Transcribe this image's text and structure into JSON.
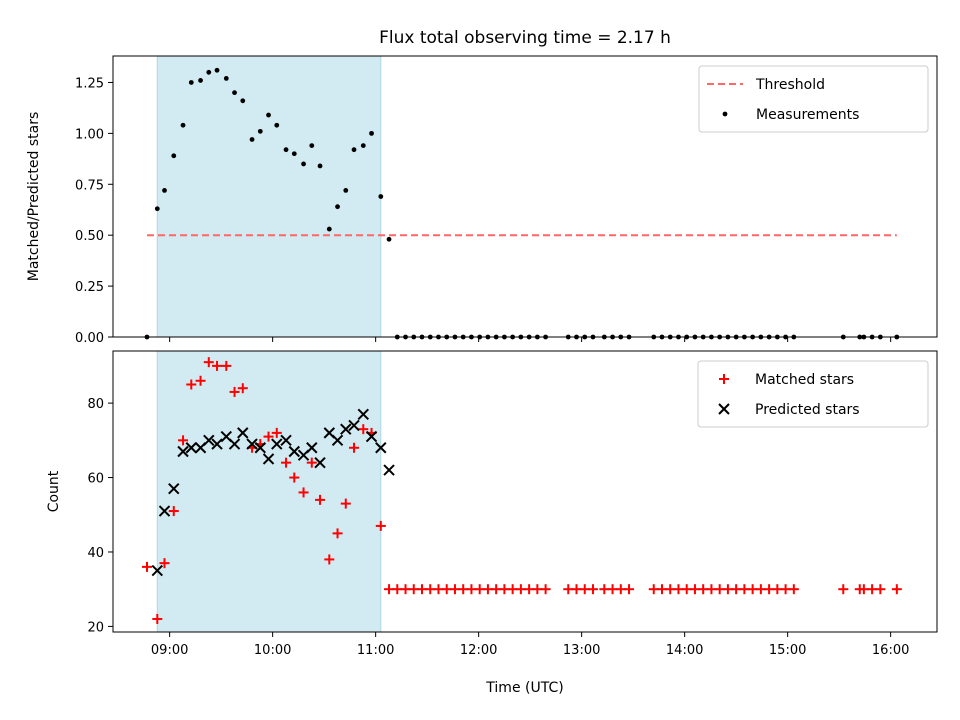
{
  "chart_data": {
    "type": "scatter",
    "title": "Flux total observing time = 2.17 h",
    "xlabel": "Time (UTC)",
    "x_unit": "hours UTC",
    "xlim": [
      8.45,
      16.45
    ],
    "xticks": [
      {
        "value": 9,
        "label": "09:00"
      },
      {
        "value": 10,
        "label": "10:00"
      },
      {
        "value": 11,
        "label": "11:00"
      },
      {
        "value": 12,
        "label": "12:00"
      },
      {
        "value": 13,
        "label": "13:00"
      },
      {
        "value": 14,
        "label": "14:00"
      },
      {
        "value": 15,
        "label": "15:00"
      },
      {
        "value": 16,
        "label": "16:00"
      }
    ],
    "shaded_interval": [
      8.88,
      11.05
    ],
    "shade_color": "#add8e6",
    "panels": [
      {
        "id": "ratio",
        "ylabel": "Matched/Predicted stars",
        "ylim": [
          0,
          1.38
        ],
        "yticks": [
          {
            "value": 0,
            "label": "0.00"
          },
          {
            "value": 0.25,
            "label": "0.25"
          },
          {
            "value": 0.5,
            "label": "0.50"
          },
          {
            "value": 0.75,
            "label": "0.75"
          },
          {
            "value": 1.0,
            "label": "1.00"
          },
          {
            "value": 1.25,
            "label": "1.25"
          }
        ],
        "legend": {
          "position": "upper right",
          "entries": [
            "Threshold",
            "Measurements"
          ]
        },
        "threshold": {
          "name": "Threshold",
          "value": 0.5,
          "x": [
            8.78,
            16.06
          ],
          "color": "#ff6666",
          "style": "dashed"
        },
        "series": [
          {
            "name": "Measurements",
            "marker": "dot",
            "color": "#000000",
            "points": [
              [
                8.78,
                0.0
              ],
              [
                8.88,
                0.63
              ],
              [
                8.95,
                0.72
              ],
              [
                9.04,
                0.89
              ],
              [
                9.13,
                1.04
              ],
              [
                9.21,
                1.25
              ],
              [
                9.3,
                1.26
              ],
              [
                9.38,
                1.3
              ],
              [
                9.46,
                1.31
              ],
              [
                9.55,
                1.27
              ],
              [
                9.63,
                1.2
              ],
              [
                9.71,
                1.16
              ],
              [
                9.8,
                0.97
              ],
              [
                9.88,
                1.01
              ],
              [
                9.96,
                1.09
              ],
              [
                10.04,
                1.04
              ],
              [
                10.13,
                0.92
              ],
              [
                10.21,
                0.9
              ],
              [
                10.3,
                0.85
              ],
              [
                10.38,
                0.94
              ],
              [
                10.46,
                0.84
              ],
              [
                10.55,
                0.53
              ],
              [
                10.63,
                0.64
              ],
              [
                10.71,
                0.72
              ],
              [
                10.79,
                0.92
              ],
              [
                10.88,
                0.94
              ],
              [
                10.96,
                1.0
              ],
              [
                11.05,
                0.69
              ],
              [
                11.13,
                0.48
              ],
              [
                11.21,
                0
              ],
              [
                11.29,
                0
              ],
              [
                11.37,
                0
              ],
              [
                11.45,
                0
              ],
              [
                11.53,
                0
              ],
              [
                11.61,
                0
              ],
              [
                11.69,
                0
              ],
              [
                11.77,
                0
              ],
              [
                11.85,
                0
              ],
              [
                11.93,
                0
              ],
              [
                12.01,
                0
              ],
              [
                12.09,
                0
              ],
              [
                12.17,
                0
              ],
              [
                12.25,
                0
              ],
              [
                12.33,
                0
              ],
              [
                12.41,
                0
              ],
              [
                12.49,
                0
              ],
              [
                12.57,
                0
              ],
              [
                12.65,
                0
              ],
              [
                12.87,
                0
              ],
              [
                12.95,
                0
              ],
              [
                13.03,
                0
              ],
              [
                13.11,
                0
              ],
              [
                13.22,
                0
              ],
              [
                13.3,
                0
              ],
              [
                13.38,
                0
              ],
              [
                13.46,
                0
              ],
              [
                13.7,
                0
              ],
              [
                13.78,
                0
              ],
              [
                13.86,
                0
              ],
              [
                13.94,
                0
              ],
              [
                14.02,
                0
              ],
              [
                14.1,
                0
              ],
              [
                14.18,
                0
              ],
              [
                14.26,
                0
              ],
              [
                14.34,
                0
              ],
              [
                14.42,
                0
              ],
              [
                14.5,
                0
              ],
              [
                14.58,
                0
              ],
              [
                14.66,
                0
              ],
              [
                14.74,
                0
              ],
              [
                14.82,
                0
              ],
              [
                14.9,
                0
              ],
              [
                14.98,
                0
              ],
              [
                15.06,
                0
              ],
              [
                15.54,
                0
              ],
              [
                15.7,
                0
              ],
              [
                15.74,
                0
              ],
              [
                15.82,
                0
              ],
              [
                15.9,
                0
              ],
              [
                16.06,
                0
              ]
            ]
          }
        ]
      },
      {
        "id": "count",
        "ylabel": "Count",
        "ylim": [
          18.5,
          94
        ],
        "yticks": [
          {
            "value": 20,
            "label": "20"
          },
          {
            "value": 40,
            "label": "40"
          },
          {
            "value": 60,
            "label": "60"
          },
          {
            "value": 80,
            "label": "80"
          }
        ],
        "legend": {
          "position": "upper right",
          "entries": [
            "Matched stars",
            "Predicted stars"
          ]
        },
        "series": [
          {
            "name": "Matched stars",
            "marker": "plus",
            "color": "#ff0000",
            "points": [
              [
                8.78,
                36
              ],
              [
                8.88,
                22
              ],
              [
                8.95,
                37
              ],
              [
                9.04,
                51
              ],
              [
                9.13,
                70
              ],
              [
                9.21,
                85
              ],
              [
                9.3,
                86
              ],
              [
                9.38,
                91
              ],
              [
                9.46,
                90
              ],
              [
                9.55,
                90
              ],
              [
                9.63,
                83
              ],
              [
                9.71,
                84
              ],
              [
                9.8,
                68
              ],
              [
                9.88,
                69
              ],
              [
                9.96,
                71
              ],
              [
                10.04,
                72
              ],
              [
                10.13,
                64
              ],
              [
                10.21,
                60
              ],
              [
                10.3,
                56
              ],
              [
                10.38,
                64
              ],
              [
                10.46,
                54
              ],
              [
                10.55,
                38
              ],
              [
                10.63,
                45
              ],
              [
                10.71,
                53
              ],
              [
                10.79,
                68
              ],
              [
                10.88,
                73
              ],
              [
                10.96,
                72
              ],
              [
                11.05,
                47
              ],
              [
                11.13,
                30
              ],
              [
                11.21,
                30
              ],
              [
                11.29,
                30
              ],
              [
                11.37,
                30
              ],
              [
                11.45,
                30
              ],
              [
                11.53,
                30
              ],
              [
                11.61,
                30
              ],
              [
                11.69,
                30
              ],
              [
                11.77,
                30
              ],
              [
                11.85,
                30
              ],
              [
                11.93,
                30
              ],
              [
                12.01,
                30
              ],
              [
                12.09,
                30
              ],
              [
                12.17,
                30
              ],
              [
                12.25,
                30
              ],
              [
                12.33,
                30
              ],
              [
                12.41,
                30
              ],
              [
                12.49,
                30
              ],
              [
                12.57,
                30
              ],
              [
                12.65,
                30
              ],
              [
                12.87,
                30
              ],
              [
                12.95,
                30
              ],
              [
                13.03,
                30
              ],
              [
                13.11,
                30
              ],
              [
                13.22,
                30
              ],
              [
                13.3,
                30
              ],
              [
                13.38,
                30
              ],
              [
                13.46,
                30
              ],
              [
                13.7,
                30
              ],
              [
                13.78,
                30
              ],
              [
                13.86,
                30
              ],
              [
                13.94,
                30
              ],
              [
                14.02,
                30
              ],
              [
                14.1,
                30
              ],
              [
                14.18,
                30
              ],
              [
                14.26,
                30
              ],
              [
                14.34,
                30
              ],
              [
                14.42,
                30
              ],
              [
                14.5,
                30
              ],
              [
                14.58,
                30
              ],
              [
                14.66,
                30
              ],
              [
                14.74,
                30
              ],
              [
                14.82,
                30
              ],
              [
                14.9,
                30
              ],
              [
                14.98,
                30
              ],
              [
                15.06,
                30
              ],
              [
                15.54,
                30
              ],
              [
                15.7,
                30
              ],
              [
                15.74,
                30
              ],
              [
                15.82,
                30
              ],
              [
                15.9,
                30
              ],
              [
                16.06,
                30
              ]
            ]
          },
          {
            "name": "Predicted stars",
            "marker": "x",
            "color": "#000000",
            "points": [
              [
                8.88,
                35
              ],
              [
                8.95,
                51
              ],
              [
                9.04,
                57
              ],
              [
                9.13,
                67
              ],
              [
                9.21,
                68
              ],
              [
                9.3,
                68
              ],
              [
                9.38,
                70
              ],
              [
                9.46,
                69
              ],
              [
                9.55,
                71
              ],
              [
                9.63,
                69
              ],
              [
                9.71,
                72
              ],
              [
                9.8,
                69
              ],
              [
                9.88,
                68
              ],
              [
                9.96,
                65
              ],
              [
                10.04,
                69
              ],
              [
                10.13,
                70
              ],
              [
                10.21,
                67
              ],
              [
                10.3,
                66
              ],
              [
                10.38,
                68
              ],
              [
                10.46,
                64
              ],
              [
                10.55,
                72
              ],
              [
                10.63,
                70
              ],
              [
                10.71,
                73
              ],
              [
                10.79,
                74
              ],
              [
                10.88,
                77
              ],
              [
                10.96,
                71
              ],
              [
                11.05,
                68
              ],
              [
                11.13,
                62
              ]
            ]
          }
        ]
      }
    ]
  }
}
